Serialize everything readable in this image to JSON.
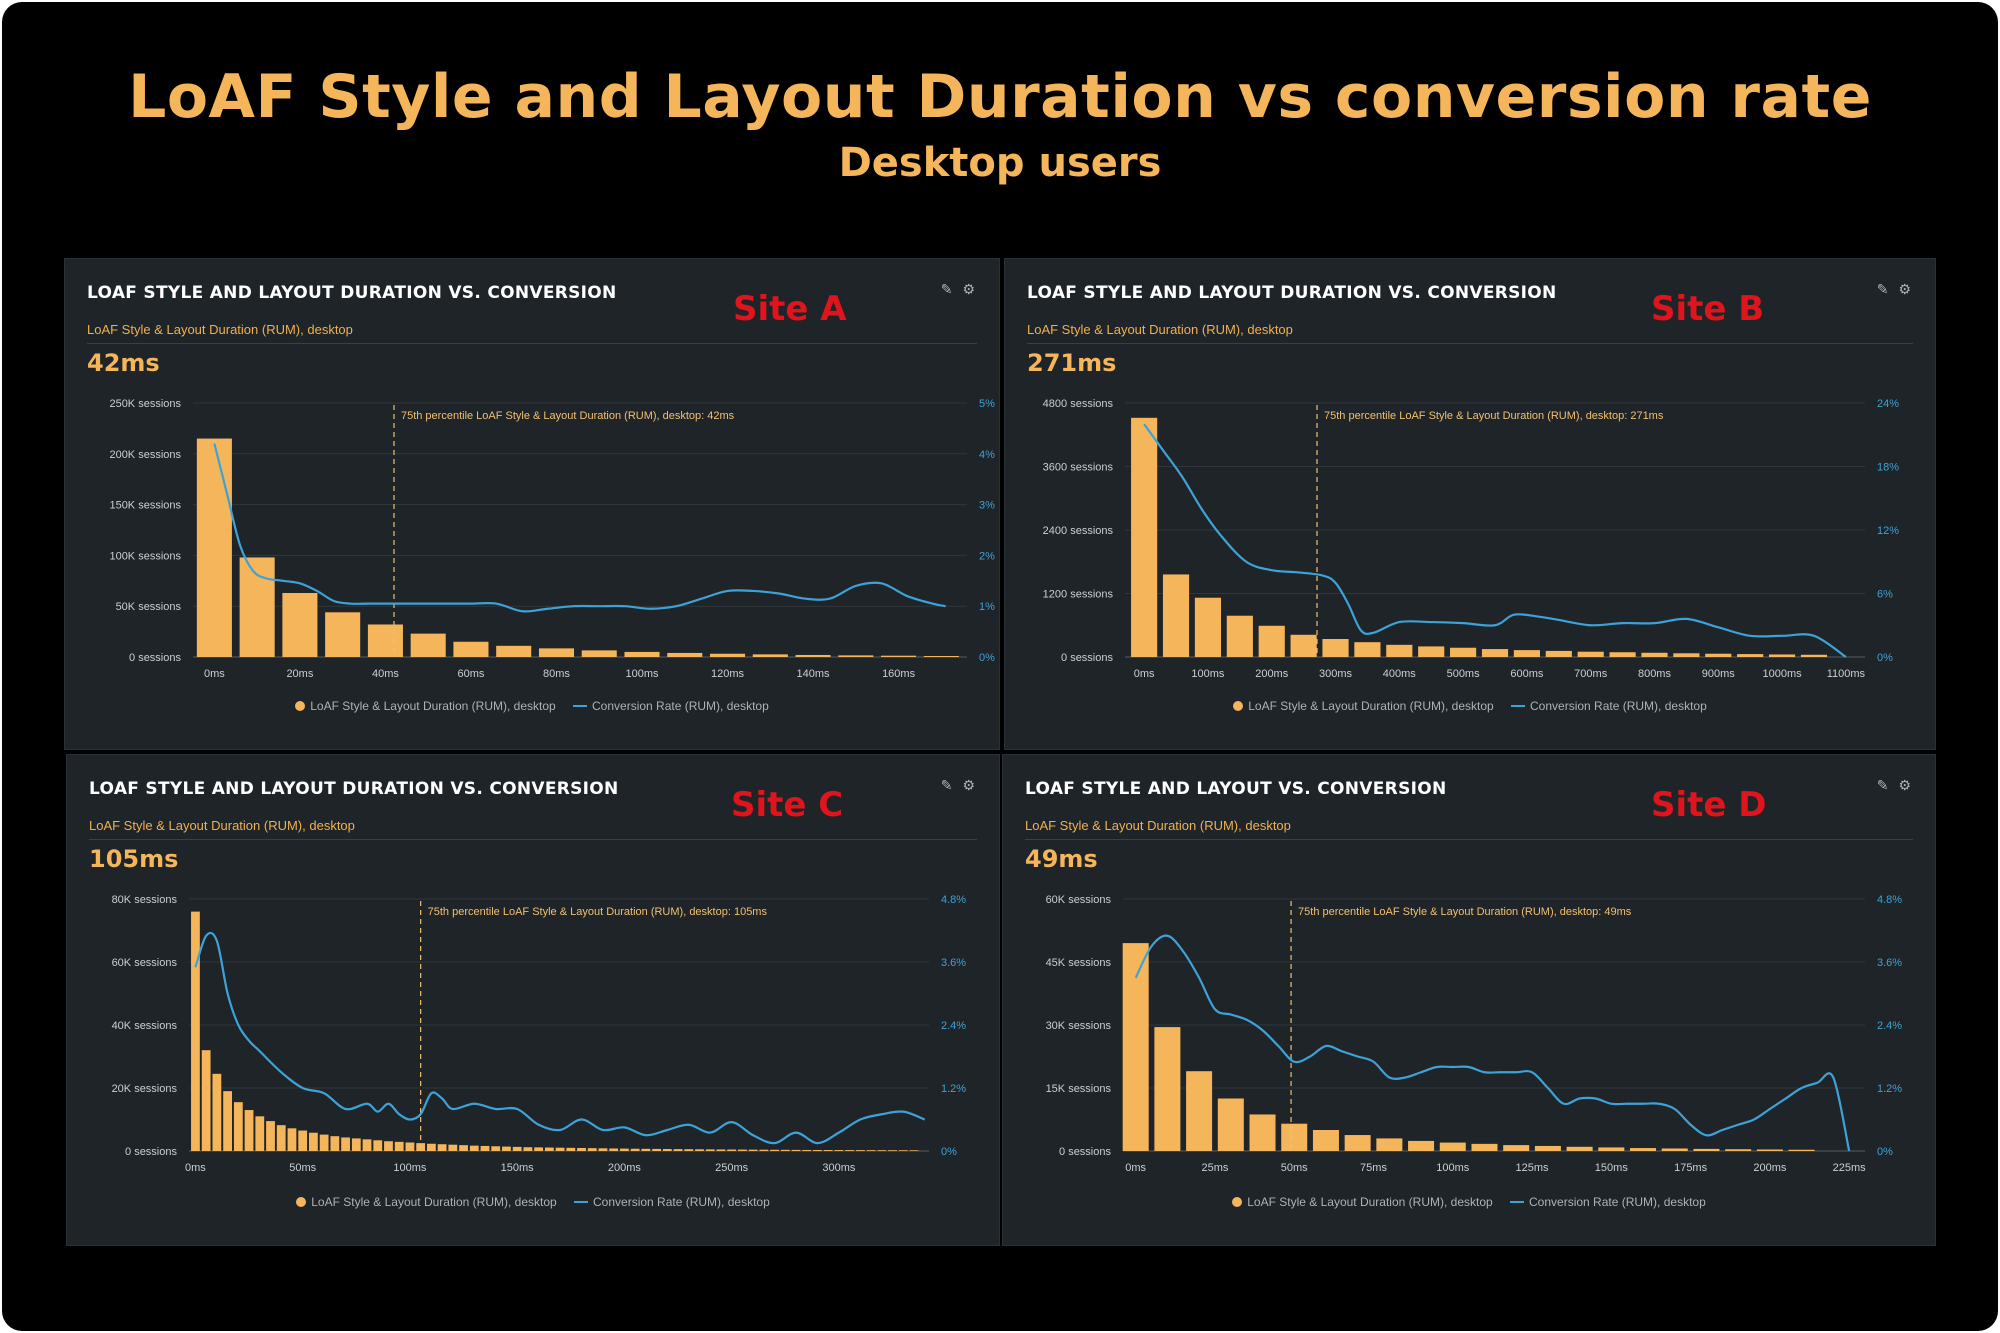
{
  "title": "LoAF Style and Layout Duration vs conversion rate",
  "subtitle": "Desktop users",
  "colors": {
    "bar": "#f5b55b",
    "line": "#3ea2d8",
    "site_label": "#e0141c",
    "background": "#1f2428"
  },
  "icons": [
    "pencil-icon",
    "gear-icon"
  ],
  "legend": {
    "bars": "LoAF Style & Layout Duration (RUM), desktop",
    "line": "Conversion Rate (RUM), desktop"
  },
  "panels": [
    {
      "title": "LOAF STYLE AND LAYOUT DURATION VS. CONVERSION",
      "site": "Site A",
      "metric_label": "LoAF Style & Layout Duration (RUM), desktop",
      "metric_value": "42ms",
      "percentile_label": "75th percentile LoAF Style & Layout Duration (RUM), desktop: 42ms"
    },
    {
      "title": "LOAF STYLE AND LAYOUT DURATION VS. CONVERSION",
      "site": "Site B",
      "metric_label": "LoAF Style & Layout Duration (RUM), desktop",
      "metric_value": "271ms",
      "percentile_label": "75th percentile LoAF Style & Layout Duration (RUM), desktop: 271ms"
    },
    {
      "title": "LOAF STYLE AND LAYOUT DURATION VS. CONVERSION",
      "site": "Site C",
      "metric_label": "LoAF Style & Layout Duration (RUM), desktop",
      "metric_value": "105ms",
      "percentile_label": "75th percentile LoAF Style & Layout Duration (RUM), desktop: 105ms"
    },
    {
      "title": "LOAF STYLE AND LAYOUT VS. CONVERSION",
      "site": "Site D",
      "metric_label": "LoAF Style & Layout Duration (RUM), desktop",
      "metric_value": "49ms",
      "percentile_label": "75th percentile LoAF Style & Layout Duration (RUM), desktop: 49ms"
    }
  ],
  "chart_data": [
    {
      "type": "bar",
      "xlabel": "",
      "ylabel": "",
      "x_ticks": [
        0,
        20,
        40,
        60,
        80,
        100,
        120,
        140,
        160
      ],
      "x_tick_labels": [
        "0ms",
        "20ms",
        "40ms",
        "60ms",
        "80ms",
        "100ms",
        "120ms",
        "140ms",
        "160ms"
      ],
      "xlim": [
        -5,
        176
      ],
      "y_ticks_left": [
        "0 sessions",
        "50K sessions",
        "100K sessions",
        "150K sessions",
        "200K sessions",
        "250K sessions"
      ],
      "ylim": [
        0,
        250000
      ],
      "y_ticks_right": [
        "0%",
        "1%",
        "2%",
        "3%",
        "4%",
        "5%"
      ],
      "y2lim": [
        0,
        5
      ],
      "percentile_x": 42,
      "series": [
        {
          "name": "LoAF Style & Layout Duration (RUM), desktop",
          "kind": "bar",
          "x": [
            0,
            10,
            20,
            30,
            40,
            50,
            60,
            70,
            80,
            90,
            100,
            110,
            120,
            130,
            140,
            150,
            160,
            170
          ],
          "values": [
            215000,
            98000,
            63000,
            44000,
            32000,
            23000,
            15000,
            11000,
            8500,
            6500,
            5000,
            4000,
            3200,
            2600,
            2000,
            1600,
            1300,
            1000
          ]
        },
        {
          "name": "Conversion Rate (RUM), desktop",
          "kind": "line",
          "x": [
            0,
            3,
            6,
            9,
            12,
            16,
            20,
            24,
            28,
            32,
            36,
            40,
            44,
            50,
            56,
            60,
            66,
            72,
            78,
            84,
            90,
            96,
            102,
            108,
            114,
            120,
            126,
            132,
            138,
            144,
            150,
            156,
            162,
            168,
            171
          ],
          "values": [
            4.2,
            3.2,
            2.2,
            1.7,
            1.55,
            1.5,
            1.45,
            1.3,
            1.1,
            1.05,
            1.05,
            1.05,
            1.05,
            1.05,
            1.05,
            1.05,
            1.05,
            0.9,
            0.95,
            1.0,
            1.0,
            1.0,
            0.95,
            1.0,
            1.15,
            1.3,
            1.3,
            1.25,
            1.15,
            1.15,
            1.4,
            1.45,
            1.2,
            1.05,
            1.0
          ]
        }
      ]
    },
    {
      "type": "bar",
      "xlabel": "",
      "ylabel": "",
      "x_ticks": [
        0,
        100,
        200,
        300,
        400,
        500,
        600,
        700,
        800,
        900,
        1000,
        1100
      ],
      "x_tick_labels": [
        "0ms",
        "100ms",
        "200ms",
        "300ms",
        "400ms",
        "500ms",
        "600ms",
        "700ms",
        "800ms",
        "900ms",
        "1000ms",
        "1100ms"
      ],
      "xlim": [
        -30,
        1130
      ],
      "y_ticks_left": [
        "0 sessions",
        "1200 sessions",
        "2400 sessions",
        "3600 sessions",
        "4800 sessions"
      ],
      "ylim": [
        0,
        4800
      ],
      "y_ticks_right": [
        "0%",
        "6%",
        "12%",
        "18%",
        "24%"
      ],
      "y2lim": [
        0,
        24
      ],
      "percentile_x": 271,
      "series": [
        {
          "name": "LoAF Style & Layout Duration (RUM), desktop",
          "kind": "bar",
          "x": [
            0,
            50,
            100,
            150,
            200,
            250,
            300,
            350,
            400,
            450,
            500,
            550,
            600,
            650,
            700,
            750,
            800,
            850,
            900,
            950,
            1000,
            1050
          ],
          "values": [
            4520,
            1560,
            1120,
            780,
            590,
            420,
            340,
            280,
            230,
            200,
            175,
            150,
            130,
            115,
            100,
            90,
            80,
            70,
            62,
            55,
            48,
            42
          ]
        },
        {
          "name": "Conversion Rate (RUM), desktop",
          "kind": "line",
          "x": [
            0,
            30,
            60,
            90,
            120,
            160,
            200,
            240,
            280,
            300,
            320,
            340,
            360,
            400,
            450,
            500,
            550,
            580,
            620,
            650,
            700,
            750,
            800,
            850,
            900,
            950,
            1000,
            1050,
            1100
          ],
          "values": [
            22,
            19.5,
            17,
            14,
            11.5,
            9,
            8.2,
            8.0,
            7.7,
            7.0,
            5.0,
            2.5,
            2.3,
            3.3,
            3.3,
            3.2,
            3.0,
            4.0,
            3.8,
            3.5,
            3.0,
            3.2,
            3.2,
            3.6,
            2.8,
            2.0,
            2.0,
            2.0,
            0
          ]
        }
      ]
    },
    {
      "type": "bar",
      "xlabel": "",
      "ylabel": "",
      "x_ticks": [
        0,
        50,
        100,
        150,
        200,
        250,
        300
      ],
      "x_tick_labels": [
        "0ms",
        "50ms",
        "100ms",
        "150ms",
        "200ms",
        "250ms",
        "300ms"
      ],
      "xlim": [
        -3,
        342
      ],
      "y_ticks_left": [
        "0 sessions",
        "20K sessions",
        "40K sessions",
        "60K sessions",
        "80K sessions"
      ],
      "ylim": [
        0,
        80000
      ],
      "y_ticks_right": [
        "0%",
        "1.2%",
        "2.4%",
        "3.6%",
        "4.8%"
      ],
      "y2lim": [
        0,
        4.8
      ],
      "percentile_x": 105,
      "series": [
        {
          "name": "LoAF Style & Layout Duration (RUM), desktop",
          "kind": "bar",
          "x": [
            0,
            5,
            10,
            15,
            20,
            25,
            30,
            35,
            40,
            45,
            50,
            55,
            60,
            65,
            70,
            75,
            80,
            85,
            90,
            95,
            100,
            105,
            110,
            115,
            120,
            125,
            130,
            135,
            140,
            145,
            150,
            155,
            160,
            165,
            170,
            175,
            180,
            185,
            190,
            195,
            200,
            205,
            210,
            215,
            220,
            225,
            230,
            235,
            240,
            245,
            250,
            255,
            260,
            265,
            270,
            275,
            280,
            285,
            290,
            295,
            300,
            305,
            310,
            315,
            320,
            325,
            330,
            335
          ],
          "values": [
            76000,
            32000,
            24500,
            19000,
            15500,
            13000,
            11000,
            9500,
            8200,
            7200,
            6500,
            5800,
            5200,
            4700,
            4300,
            4000,
            3700,
            3400,
            3100,
            2900,
            2700,
            2500,
            2300,
            2150,
            2000,
            1850,
            1700,
            1600,
            1500,
            1400,
            1300,
            1200,
            1150,
            1100,
            1050,
            1000,
            950,
            900,
            850,
            800,
            760,
            720,
            690,
            660,
            630,
            600,
            570,
            540,
            510,
            490,
            470,
            450,
            430,
            410,
            390,
            370,
            350,
            330,
            320,
            310,
            300,
            290,
            280,
            270,
            260,
            250,
            240,
            230
          ]
        },
        {
          "name": "Conversion Rate (RUM), desktop",
          "kind": "line",
          "x": [
            0,
            5,
            10,
            15,
            20,
            25,
            30,
            40,
            50,
            60,
            70,
            80,
            85,
            90,
            95,
            100,
            105,
            110,
            115,
            120,
            130,
            140,
            150,
            160,
            170,
            180,
            190,
            200,
            210,
            220,
            230,
            240,
            250,
            260,
            270,
            280,
            290,
            300,
            310,
            320,
            330,
            340
          ],
          "values": [
            3.5,
            4.1,
            4.0,
            3.0,
            2.4,
            2.1,
            1.9,
            1.5,
            1.2,
            1.1,
            0.8,
            0.9,
            0.75,
            0.9,
            0.7,
            0.6,
            0.7,
            1.1,
            1.0,
            0.8,
            0.9,
            0.8,
            0.8,
            0.5,
            0.4,
            0.6,
            0.4,
            0.45,
            0.3,
            0.4,
            0.5,
            0.35,
            0.55,
            0.3,
            0.15,
            0.35,
            0.15,
            0.35,
            0.6,
            0.7,
            0.75,
            0.6
          ]
        }
      ]
    },
    {
      "type": "bar",
      "xlabel": "",
      "ylabel": "",
      "x_ticks": [
        0,
        25,
        50,
        75,
        100,
        125,
        150,
        175,
        200,
        225
      ],
      "x_tick_labels": [
        "0ms",
        "25ms",
        "50ms",
        "75ms",
        "100ms",
        "125ms",
        "150ms",
        "175ms",
        "200ms",
        "225ms"
      ],
      "xlim": [
        -4,
        230
      ],
      "y_ticks_left": [
        "0 sessions",
        "15K sessions",
        "30K sessions",
        "45K sessions",
        "60K sessions"
      ],
      "ylim": [
        0,
        60000
      ],
      "y_ticks_right": [
        "0%",
        "1.2%",
        "2.4%",
        "3.6%",
        "4.8%"
      ],
      "y2lim": [
        0,
        4.8
      ],
      "percentile_x": 49,
      "series": [
        {
          "name": "LoAF Style & Layout Duration (RUM), desktop",
          "kind": "bar",
          "x": [
            0,
            10,
            20,
            30,
            40,
            50,
            60,
            70,
            80,
            90,
            100,
            110,
            120,
            130,
            140,
            150,
            160,
            170,
            180,
            190,
            200,
            210
          ],
          "values": [
            49500,
            29500,
            19000,
            12500,
            8700,
            6500,
            5000,
            3800,
            3000,
            2400,
            2000,
            1700,
            1400,
            1200,
            1000,
            850,
            700,
            600,
            500,
            420,
            360,
            300
          ]
        },
        {
          "name": "Conversion Rate (RUM), desktop",
          "kind": "line",
          "x": [
            0,
            5,
            10,
            15,
            20,
            25,
            30,
            35,
            40,
            45,
            50,
            55,
            60,
            65,
            70,
            75,
            80,
            85,
            90,
            95,
            100,
            105,
            110,
            115,
            120,
            125,
            130,
            135,
            140,
            145,
            150,
            155,
            160,
            165,
            170,
            175,
            180,
            185,
            190,
            195,
            200,
            205,
            210,
            215,
            220,
            225
          ],
          "values": [
            3.3,
            3.9,
            4.1,
            3.8,
            3.3,
            2.7,
            2.6,
            2.5,
            2.3,
            2.0,
            1.7,
            1.8,
            2.0,
            1.9,
            1.8,
            1.7,
            1.4,
            1.4,
            1.5,
            1.6,
            1.6,
            1.6,
            1.5,
            1.5,
            1.5,
            1.5,
            1.2,
            0.9,
            1.0,
            1.0,
            0.9,
            0.9,
            0.9,
            0.9,
            0.8,
            0.5,
            0.3,
            0.4,
            0.5,
            0.6,
            0.8,
            1.0,
            1.2,
            1.3,
            1.4,
            0
          ]
        }
      ]
    }
  ]
}
